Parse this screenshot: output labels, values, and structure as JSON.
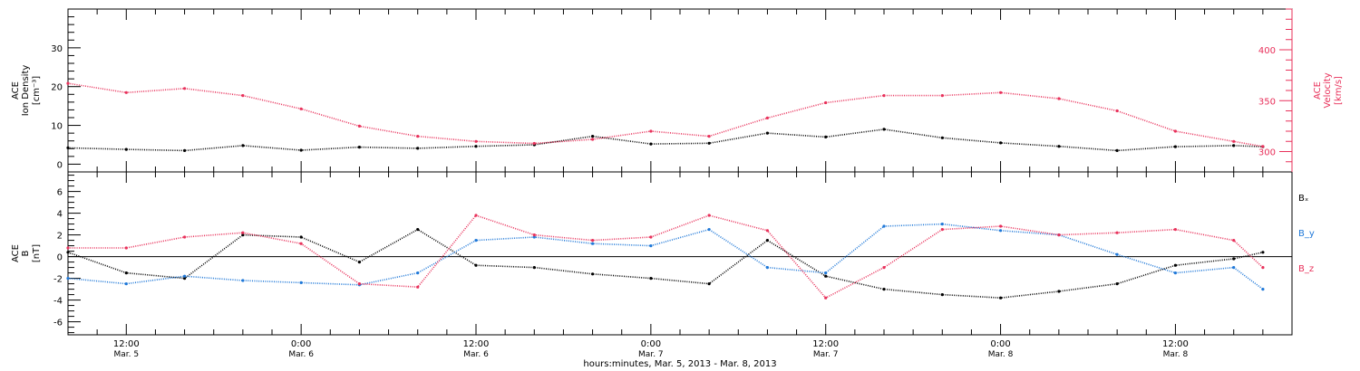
{
  "colors": {
    "black": "#000000",
    "density": "#000000",
    "velocity": "#e8305a",
    "bx": "#000000",
    "by": "#1f78d8",
    "bz": "#e8305a"
  },
  "chart_data": [
    {
      "type": "scatter",
      "panel": "top",
      "ylabel_line1": "ACE",
      "ylabel_line2": "Ion Density",
      "ylabel_units": "[cm⁻³]",
      "ylabel_right_line1": "ACE",
      "ylabel_right_line2": "Velocity",
      "ylabel_right_units": "[km/s]",
      "ylim": [
        -2,
        40
      ],
      "ylim_right": [
        280,
        440
      ],
      "yticks": [
        "0",
        "10",
        "20",
        "30"
      ],
      "yticks_right": [
        "300",
        "350",
        "400"
      ],
      "x_range_hours": [
        8,
        92
      ],
      "series": [
        {
          "key": "density",
          "x_hours": [
            8,
            12,
            16,
            20,
            24,
            28,
            32,
            36,
            40,
            44,
            48,
            52,
            56,
            60,
            64,
            68,
            72,
            76,
            80,
            84,
            88,
            90
          ],
          "values": [
            4.2,
            3.8,
            3.5,
            4.8,
            3.6,
            4.4,
            4.1,
            4.6,
            5.0,
            7.2,
            5.2,
            5.4,
            8.0,
            7.0,
            9.0,
            6.8,
            5.5,
            4.6,
            3.5,
            4.5,
            4.8,
            4.5
          ]
        },
        {
          "key": "velocity",
          "x_hours": [
            8,
            12,
            16,
            20,
            24,
            28,
            32,
            36,
            40,
            44,
            48,
            52,
            56,
            60,
            64,
            68,
            72,
            76,
            80,
            84,
            88,
            90
          ],
          "values": [
            367,
            358,
            362,
            355,
            342,
            325,
            315,
            310,
            308,
            312,
            320,
            315,
            333,
            348,
            355,
            355,
            358,
            352,
            340,
            320,
            310,
            305
          ]
        }
      ]
    },
    {
      "type": "scatter",
      "panel": "bottom",
      "ylabel_line1": "ACE",
      "ylabel_line2": "B",
      "ylabel_units": "[nT]",
      "ylim": [
        -7.2,
        7.8
      ],
      "yticks": [
        "6",
        "4",
        "2",
        "0",
        "-2",
        "-4",
        "-6"
      ],
      "x_range_hours": [
        8,
        92
      ],
      "series": [
        {
          "key": "bx",
          "name": "Bₓ",
          "x_hours": [
            8,
            12,
            16,
            20,
            24,
            28,
            32,
            36,
            40,
            44,
            48,
            52,
            56,
            60,
            64,
            68,
            72,
            76,
            80,
            84,
            88,
            90
          ],
          "values": [
            0.4,
            -1.5,
            -2.0,
            2.0,
            1.8,
            -0.5,
            2.5,
            -0.8,
            -1.0,
            -1.6,
            -2.0,
            -2.5,
            1.5,
            -1.8,
            -3.0,
            -3.5,
            -3.8,
            -3.2,
            -2.5,
            -0.8,
            -0.2,
            0.4
          ]
        },
        {
          "key": "by",
          "name": "B_y",
          "x_hours": [
            8,
            12,
            16,
            20,
            24,
            28,
            32,
            36,
            40,
            44,
            48,
            52,
            56,
            60,
            64,
            68,
            72,
            76,
            80,
            84,
            88,
            90
          ],
          "values": [
            -2.0,
            -2.5,
            -1.8,
            -2.2,
            -2.4,
            -2.6,
            -1.5,
            1.5,
            1.8,
            1.2,
            1.0,
            2.5,
            -1.0,
            -1.5,
            2.8,
            3.0,
            2.4,
            2.0,
            0.2,
            -1.5,
            -1.0,
            -3.0
          ]
        },
        {
          "key": "bz",
          "name": "B_z",
          "x_hours": [
            8,
            12,
            16,
            20,
            24,
            28,
            32,
            36,
            40,
            44,
            48,
            52,
            56,
            60,
            64,
            68,
            72,
            76,
            80,
            84,
            88,
            90
          ],
          "values": [
            0.8,
            0.8,
            1.8,
            2.2,
            1.2,
            -2.5,
            -2.8,
            3.8,
            2.0,
            1.5,
            1.8,
            3.8,
            2.4,
            -3.8,
            -1.0,
            2.5,
            2.8,
            2.0,
            2.2,
            2.5,
            1.5,
            -1.0
          ]
        }
      ]
    }
  ],
  "x_axis": {
    "ticks": [
      {
        "h": 12,
        "time": "12:00",
        "date": "Mar. 5"
      },
      {
        "h": 24,
        "time": "0:00",
        "date": "Mar. 6"
      },
      {
        "h": 36,
        "time": "12:00",
        "date": "Mar. 6"
      },
      {
        "h": 48,
        "time": "0:00",
        "date": "Mar. 7"
      },
      {
        "h": 60,
        "time": "12:00",
        "date": "Mar. 7"
      },
      {
        "h": 72,
        "time": "0:00",
        "date": "Mar. 8"
      },
      {
        "h": 84,
        "time": "12:00",
        "date": "Mar. 8"
      }
    ],
    "label": "hours:minutes, Mar. 5, 2013 - Mar. 8, 2013"
  }
}
